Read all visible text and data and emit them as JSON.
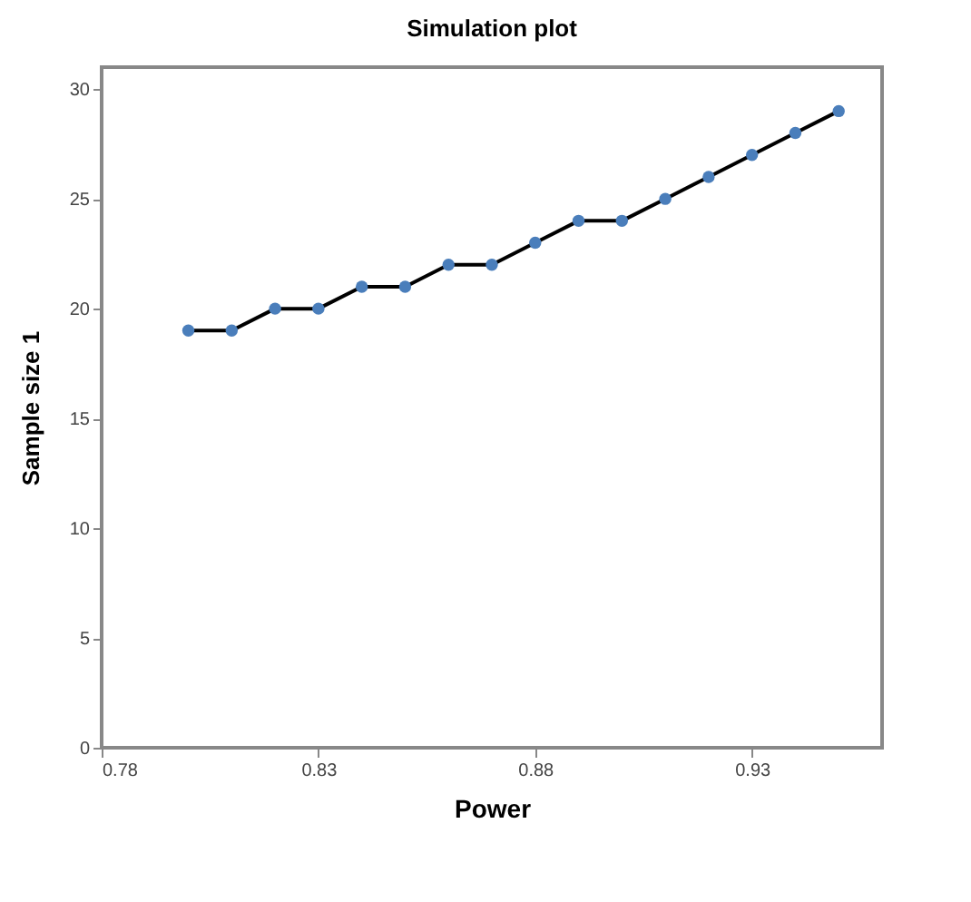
{
  "chart_data": {
    "type": "line",
    "title": "Simulation plot",
    "xlabel": "Power",
    "ylabel": "Sample size 1",
    "x": [
      0.8,
      0.81,
      0.82,
      0.83,
      0.84,
      0.85,
      0.86,
      0.87,
      0.88,
      0.89,
      0.9,
      0.91,
      0.92,
      0.93,
      0.94,
      0.95
    ],
    "series": [
      {
        "color": "#000000",
        "values": [
          19,
          19,
          20,
          20,
          21,
          21,
          22,
          22,
          23,
          24,
          24,
          25,
          26,
          27,
          28,
          29
        ]
      }
    ],
    "marker": "circle",
    "xlim": [
      0.78,
      0.96
    ],
    "xticks": [
      0.78,
      0.83,
      0.88,
      0.93
    ],
    "ylim": [
      0,
      31
    ],
    "yticks": [
      0,
      5,
      10,
      15,
      20,
      25,
      30
    ],
    "grid": false,
    "legend": false
  }
}
